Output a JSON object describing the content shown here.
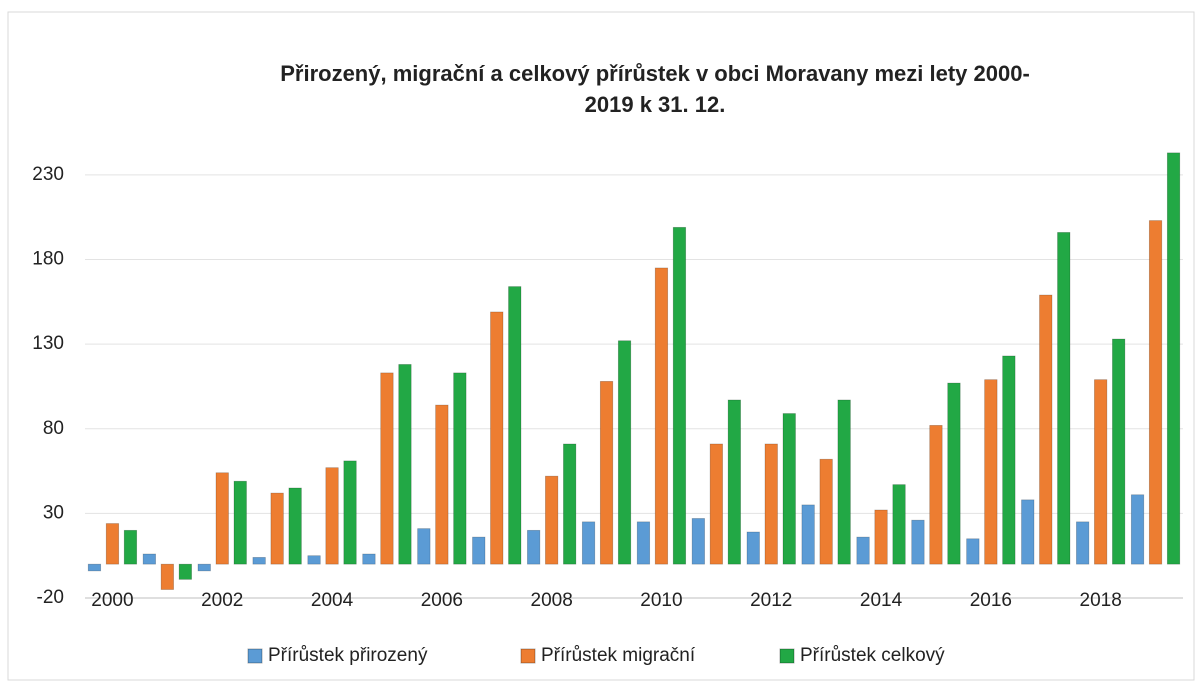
{
  "chart_data": {
    "type": "bar",
    "title": [
      "Přirozený, migrační a celkový přírůstek v obci Moravany mezi lety 2000-",
      "2019 k 31. 12."
    ],
    "categories": [
      "2000",
      null,
      "2002",
      null,
      "2004",
      null,
      "2006",
      null,
      "2008",
      null,
      "2010",
      null,
      "2012",
      null,
      "2014",
      null,
      "2016",
      null,
      "2018",
      null
    ],
    "series": [
      {
        "name": "Přírůstek přirozený",
        "color": "#5b9bd5",
        "values": [
          -4,
          6,
          -4,
          4,
          5,
          6,
          21,
          16,
          20,
          25,
          25,
          27,
          19,
          35,
          16,
          26,
          15,
          38,
          25,
          41
        ]
      },
      {
        "name": "Přírůstek migrační",
        "color": "#ed7d31",
        "values": [
          24,
          -15,
          54,
          42,
          57,
          113,
          94,
          149,
          52,
          108,
          175,
          71,
          71,
          62,
          32,
          82,
          109,
          159,
          109,
          203
        ]
      },
      {
        "name": "Přírůstek celkový",
        "color": "#22a845",
        "values": [
          20,
          -9,
          49,
          45,
          61,
          118,
          113,
          164,
          71,
          132,
          199,
          97,
          89,
          97,
          47,
          107,
          123,
          196,
          133,
          243
        ]
      }
    ],
    "ylim": [
      -20,
      250
    ],
    "yticks": [
      -20,
      30,
      80,
      130,
      180,
      230
    ],
    "grid": true,
    "legend": "bottom"
  }
}
